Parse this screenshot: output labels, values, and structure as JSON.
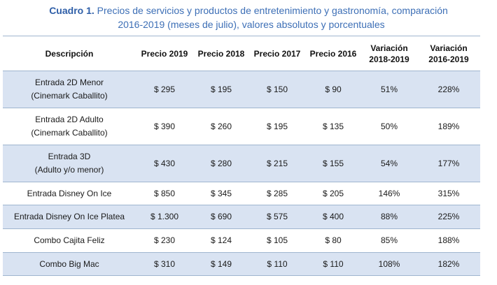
{
  "caption": {
    "label": "Cuadro 1.",
    "line1": "Precios de servicios y productos de entretenimiento y gastronomía, comparación",
    "line2": "2016-2019 (meses de julio), valores absolutos y porcentuales"
  },
  "table": {
    "headers": {
      "descripcion": "Descripción",
      "precio2019": "Precio 2019",
      "precio2018": "Precio 2018",
      "precio2017": "Precio 2017",
      "precio2016": "Precio 2016",
      "var1_line1": "Variación",
      "var1_line2": "2018-2019",
      "var2_line1": "Variación",
      "var2_line2": "2016-2019"
    },
    "rows": [
      {
        "desc_line1": "Entrada 2D Menor",
        "desc_line2": "(Cinemark Caballito)",
        "p2019": "$ 295",
        "p2018": "$ 195",
        "p2017": "$ 150",
        "p2016": "$ 90",
        "var1": "51%",
        "var2": "228%"
      },
      {
        "desc_line1": "Entrada 2D Adulto",
        "desc_line2": "(Cinemark Caballito)",
        "p2019": "$ 390",
        "p2018": "$ 260",
        "p2017": "$ 195",
        "p2016": "$ 135",
        "var1": "50%",
        "var2": "189%"
      },
      {
        "desc_line1": "Entrada 3D",
        "desc_line2": "(Adulto y/o menor)",
        "p2019": "$ 430",
        "p2018": "$ 280",
        "p2017": "$ 215",
        "p2016": "$ 155",
        "var1": "54%",
        "var2": "177%"
      },
      {
        "desc_line1": "Entrada Disney On Ice",
        "p2019": "$ 850",
        "p2018": "$ 345",
        "p2017": "$ 285",
        "p2016": "$ 205",
        "var1": "146%",
        "var2": "315%"
      },
      {
        "desc_line1": "Entrada Disney On Ice Platea",
        "p2019": "$ 1.300",
        "p2018": "$ 690",
        "p2017": "$ 575",
        "p2016": "$ 400",
        "var1": "88%",
        "var2": "225%"
      },
      {
        "desc_line1": "Combo Cajita Feliz",
        "p2019": "$ 230",
        "p2018": "$ 124",
        "p2017": "$ 105",
        "p2016": "$ 80",
        "var1": "85%",
        "var2": "188%"
      },
      {
        "desc_line1": "Combo Big Mac",
        "p2019": "$ 310",
        "p2018": "$ 149",
        "p2017": "$ 110",
        "p2016": "$ 110",
        "var1": "108%",
        "var2": "182%"
      }
    ]
  },
  "colors": {
    "caption_text": "#3d6fb6",
    "row_shade": "#d9e3f2",
    "rule": "#9fb5cf"
  }
}
